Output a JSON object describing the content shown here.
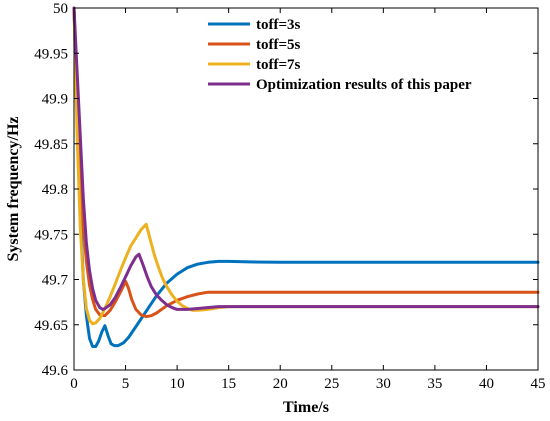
{
  "chart_data": {
    "type": "line",
    "xlabel": "Time/s",
    "ylabel": "System frequency/Hz",
    "xlim": [
      0,
      45
    ],
    "ylim": [
      49.6,
      50
    ],
    "xticks": [
      "0",
      "5",
      "10",
      "15",
      "20",
      "25",
      "30",
      "35",
      "40",
      "45"
    ],
    "yticks": [
      "49.6",
      "49.65",
      "49.7",
      "49.75",
      "49.8",
      "49.85",
      "49.9",
      "49.95",
      "50"
    ],
    "grid": false,
    "legend_position": "top-right",
    "series": [
      {
        "name": "toff=3s",
        "color": "#0072BD",
        "x": [
          0,
          0.3,
          0.6,
          0.9,
          1.2,
          1.5,
          1.8,
          2.1,
          2.4,
          2.7,
          3.0,
          3.3,
          3.6,
          3.9,
          4.3,
          4.8,
          5.3,
          6.0,
          7.0,
          8.0,
          9.0,
          10.0,
          11.0,
          12.0,
          13.0,
          14.0,
          15.0,
          17.0,
          20.0,
          25.0,
          30.0,
          35.0,
          40.0,
          45.0
        ],
        "y": [
          50,
          49.88,
          49.78,
          49.7,
          49.66,
          49.635,
          49.626,
          49.626,
          49.632,
          49.642,
          49.649,
          49.638,
          49.629,
          49.627,
          49.627,
          49.63,
          49.636,
          49.648,
          49.665,
          49.682,
          49.696,
          49.706,
          49.713,
          49.717,
          49.719,
          49.72,
          49.72,
          49.7195,
          49.719,
          49.719,
          49.719,
          49.719,
          49.719,
          49.719
        ]
      },
      {
        "name": "toff=5s",
        "color": "#D95319",
        "x": [
          0,
          0.3,
          0.6,
          0.9,
          1.2,
          1.5,
          1.8,
          2.1,
          2.5,
          3.0,
          3.5,
          4.0,
          4.5,
          5.0,
          5.3,
          5.6,
          6.0,
          6.5,
          7.0,
          7.5,
          8.0,
          8.5,
          9.0,
          10.0,
          11.0,
          12.0,
          13.0,
          14.0,
          16.0,
          20.0,
          25.0,
          30.0,
          35.0,
          40.0,
          45.0
        ],
        "y": [
          50,
          49.9,
          49.82,
          49.76,
          49.72,
          49.694,
          49.678,
          49.667,
          49.661,
          49.66,
          49.666,
          49.675,
          49.686,
          49.698,
          49.69,
          49.678,
          49.667,
          49.661,
          49.659,
          49.66,
          49.663,
          49.667,
          49.671,
          49.677,
          49.681,
          49.684,
          49.686,
          49.686,
          49.686,
          49.686,
          49.686,
          49.686,
          49.686,
          49.686,
          49.686
        ]
      },
      {
        "name": "toff=7s",
        "color": "#EDB120",
        "x": [
          0,
          0.3,
          0.6,
          0.9,
          1.2,
          1.5,
          1.8,
          2.1,
          2.5,
          3.0,
          3.5,
          4.0,
          4.5,
          5.0,
          5.5,
          6.0,
          6.5,
          7.0,
          7.4,
          7.8,
          8.2,
          8.6,
          9.0,
          9.5,
          10.0,
          10.5,
          11.0,
          11.5,
          12.0,
          13.0,
          14.0,
          15.0,
          16.0,
          18.0,
          20.0,
          25.0,
          30.0,
          35.0,
          40.0,
          45.0
        ],
        "y": [
          50,
          49.86,
          49.76,
          49.7,
          49.668,
          49.655,
          49.651,
          49.652,
          49.657,
          49.668,
          49.681,
          49.695,
          49.71,
          49.724,
          49.737,
          49.746,
          49.755,
          49.761,
          49.744,
          49.727,
          49.713,
          49.701,
          49.692,
          49.683,
          49.676,
          49.671,
          49.668,
          49.666,
          49.666,
          49.667,
          49.669,
          49.67,
          49.67,
          49.67,
          49.67,
          49.67,
          49.67,
          49.67,
          49.67,
          49.67
        ]
      },
      {
        "name": "Optimization results of this paper",
        "color": "#7E2F8E",
        "x": [
          0,
          0.3,
          0.6,
          0.9,
          1.2,
          1.5,
          1.8,
          2.1,
          2.5,
          2.8,
          3.0,
          3.5,
          4.0,
          4.5,
          5.0,
          5.5,
          6.0,
          6.3,
          6.7,
          7.1,
          7.5,
          8.0,
          8.5,
          9.0,
          9.5,
          10.0,
          10.5,
          11.0,
          12.0,
          14.0,
          16.0,
          18.0,
          20.0,
          25.0,
          30.0,
          35.0,
          40.0,
          45.0
        ],
        "y": [
          50,
          49.93,
          49.86,
          49.79,
          49.74,
          49.71,
          49.69,
          49.677,
          49.669,
          49.667,
          49.668,
          49.672,
          49.68,
          49.691,
          49.703,
          49.715,
          49.725,
          49.728,
          49.716,
          49.703,
          49.692,
          49.683,
          49.677,
          49.672,
          49.669,
          49.667,
          49.667,
          49.667,
          49.668,
          49.67,
          49.67,
          49.67,
          49.67,
          49.67,
          49.67,
          49.67,
          49.67,
          49.67
        ]
      }
    ]
  }
}
